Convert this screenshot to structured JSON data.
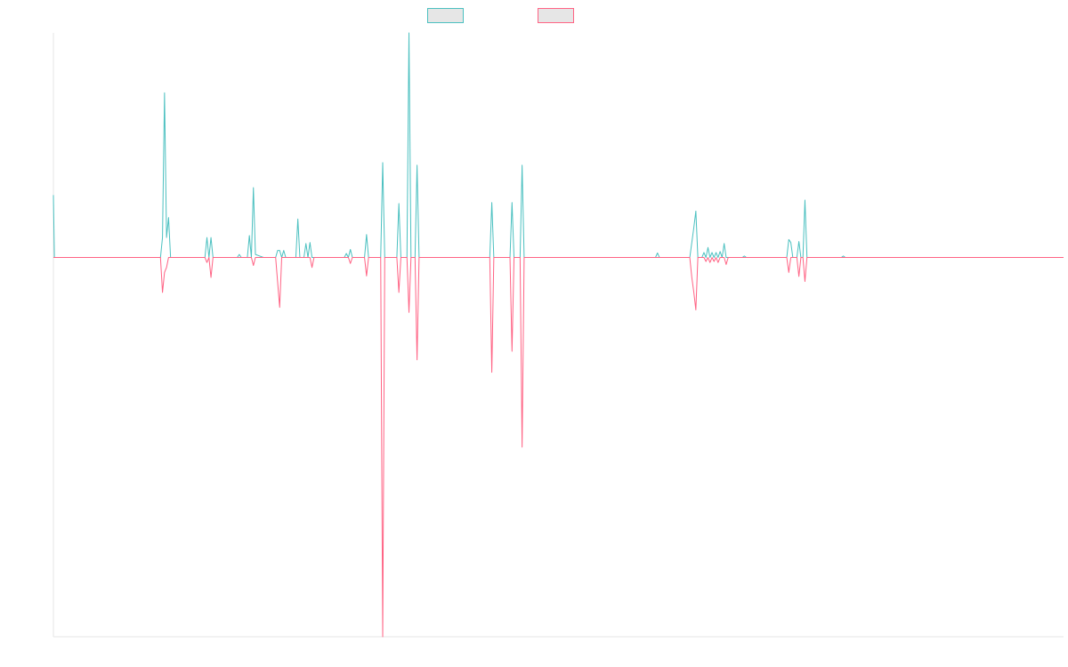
{
  "chart_data": {
    "type": "line",
    "title": "",
    "xlabel": "",
    "ylabel": "",
    "x_range": [
      0,
      1000
    ],
    "ylim": [
      -76,
      45
    ],
    "grid": false,
    "legend_position": "top",
    "series": [
      {
        "name": "",
        "color": "#4bc0c0",
        "fill_color": "#e6e6e6",
        "values": [
          [
            0,
            12.5
          ],
          [
            1,
            0
          ],
          [
            88,
            0
          ],
          [
            92,
            0
          ],
          [
            106,
            0
          ],
          [
            108,
            4
          ],
          [
            110,
            33
          ],
          [
            112,
            4
          ],
          [
            114,
            8
          ],
          [
            116,
            0
          ],
          [
            128,
            0
          ],
          [
            132,
            0
          ],
          [
            134,
            0
          ],
          [
            150,
            0
          ],
          [
            152,
            4
          ],
          [
            154,
            0
          ],
          [
            156,
            4
          ],
          [
            158,
            0
          ],
          [
            182,
            0
          ],
          [
            184,
            0.6
          ],
          [
            186,
            0
          ],
          [
            192,
            0
          ],
          [
            194,
            4.4
          ],
          [
            196,
            0
          ],
          [
            198,
            14
          ],
          [
            200,
            0.6
          ],
          [
            204,
            0.3
          ],
          [
            208,
            0
          ],
          [
            220,
            0
          ],
          [
            222,
            1.4
          ],
          [
            224,
            1.4
          ],
          [
            226,
            0
          ],
          [
            228,
            1.4
          ],
          [
            230,
            0
          ],
          [
            240,
            0
          ],
          [
            242,
            7.7
          ],
          [
            244,
            0
          ],
          [
            248,
            0
          ],
          [
            250,
            2.8
          ],
          [
            252,
            0
          ],
          [
            254,
            3
          ],
          [
            256,
            0
          ],
          [
            288,
            0
          ],
          [
            290,
            0.8
          ],
          [
            292,
            0
          ],
          [
            294,
            1.6
          ],
          [
            296,
            0
          ],
          [
            308,
            0
          ],
          [
            310,
            4.6
          ],
          [
            312,
            0
          ],
          [
            316,
            0
          ],
          [
            318,
            0
          ],
          [
            324,
            0
          ],
          [
            326,
            19
          ],
          [
            328,
            0
          ],
          [
            340,
            0
          ],
          [
            342,
            10.8
          ],
          [
            344,
            0
          ],
          [
            350,
            0
          ],
          [
            352,
            45
          ],
          [
            354,
            0
          ],
          [
            358,
            0
          ],
          [
            360,
            18.5
          ],
          [
            362,
            0
          ],
          [
            372,
            0
          ],
          [
            374,
            0
          ],
          [
            432,
            0
          ],
          [
            434,
            11
          ],
          [
            436,
            0
          ],
          [
            452,
            0
          ],
          [
            454,
            11
          ],
          [
            456,
            0
          ],
          [
            462,
            0
          ],
          [
            464,
            18.5
          ],
          [
            466,
            0
          ],
          [
            505,
            0
          ],
          [
            550,
            0
          ],
          [
            596,
            0
          ],
          [
            598,
            0.9
          ],
          [
            600,
            0
          ],
          [
            630,
            0
          ],
          [
            632,
            3
          ],
          [
            634,
            6
          ],
          [
            636,
            9.3
          ],
          [
            638,
            0
          ],
          [
            642,
            0
          ],
          [
            644,
            1
          ],
          [
            646,
            0
          ],
          [
            648,
            2
          ],
          [
            650,
            0
          ],
          [
            652,
            1
          ],
          [
            654,
            0
          ],
          [
            656,
            1
          ],
          [
            658,
            0
          ],
          [
            660,
            1.2
          ],
          [
            662,
            0
          ],
          [
            664,
            2.8
          ],
          [
            666,
            0
          ],
          [
            682,
            0
          ],
          [
            684,
            0.3
          ],
          [
            686,
            0
          ],
          [
            726,
            0
          ],
          [
            728,
            3.6
          ],
          [
            730,
            3
          ],
          [
            732,
            0
          ],
          [
            736,
            0
          ],
          [
            738,
            3.2
          ],
          [
            740,
            0
          ],
          [
            742,
            0
          ],
          [
            744,
            11.5
          ],
          [
            746,
            0
          ],
          [
            780,
            0
          ],
          [
            782,
            0.3
          ],
          [
            784,
            0
          ],
          [
            1000,
            0
          ]
        ]
      },
      {
        "name": "",
        "color": "#ff6384",
        "fill_color": "#e6e6e6",
        "values": [
          [
            0,
            0
          ],
          [
            88,
            0
          ],
          [
            92,
            0
          ],
          [
            106,
            0
          ],
          [
            108,
            -7
          ],
          [
            110,
            -3
          ],
          [
            112,
            -2
          ],
          [
            114,
            0
          ],
          [
            128,
            0
          ],
          [
            132,
            0
          ],
          [
            134,
            0
          ],
          [
            150,
            0
          ],
          [
            152,
            -1
          ],
          [
            154,
            0
          ],
          [
            156,
            -4
          ],
          [
            158,
            0
          ],
          [
            182,
            0
          ],
          [
            184,
            0
          ],
          [
            186,
            0
          ],
          [
            196,
            0
          ],
          [
            198,
            -1.6
          ],
          [
            200,
            0
          ],
          [
            220,
            0
          ],
          [
            222,
            -5
          ],
          [
            224,
            -10
          ],
          [
            226,
            0
          ],
          [
            228,
            0
          ],
          [
            230,
            0
          ],
          [
            254,
            0
          ],
          [
            256,
            -2
          ],
          [
            258,
            0
          ],
          [
            288,
            0
          ],
          [
            292,
            0
          ],
          [
            294,
            -1.2
          ],
          [
            296,
            0
          ],
          [
            308,
            0
          ],
          [
            310,
            -3.7
          ],
          [
            312,
            0
          ],
          [
            316,
            0
          ],
          [
            318,
            0
          ],
          [
            324,
            0
          ],
          [
            326,
            -76
          ],
          [
            328,
            0
          ],
          [
            340,
            0
          ],
          [
            342,
            -7
          ],
          [
            344,
            0
          ],
          [
            350,
            0
          ],
          [
            352,
            -11
          ],
          [
            354,
            0
          ],
          [
            358,
            0
          ],
          [
            360,
            -20.5
          ],
          [
            362,
            0
          ],
          [
            372,
            0
          ],
          [
            374,
            0
          ],
          [
            432,
            0
          ],
          [
            434,
            -23
          ],
          [
            436,
            0
          ],
          [
            452,
            0
          ],
          [
            454,
            -18.8
          ],
          [
            456,
            0
          ],
          [
            462,
            0
          ],
          [
            464,
            -38
          ],
          [
            466,
            0
          ],
          [
            505,
            0
          ],
          [
            550,
            0
          ],
          [
            596,
            0
          ],
          [
            600,
            0
          ],
          [
            630,
            0
          ],
          [
            632,
            -4
          ],
          [
            634,
            -7
          ],
          [
            636,
            -10.5
          ],
          [
            638,
            0
          ],
          [
            642,
            0
          ],
          [
            644,
            0
          ],
          [
            646,
            -0.8
          ],
          [
            648,
            0
          ],
          [
            650,
            -1
          ],
          [
            652,
            0
          ],
          [
            654,
            -0.8
          ],
          [
            656,
            0
          ],
          [
            658,
            -1
          ],
          [
            660,
            0
          ],
          [
            664,
            0
          ],
          [
            666,
            -1.4
          ],
          [
            668,
            0
          ],
          [
            682,
            0
          ],
          [
            686,
            0
          ],
          [
            726,
            0
          ],
          [
            728,
            -3
          ],
          [
            730,
            0
          ],
          [
            736,
            0
          ],
          [
            738,
            -3.8
          ],
          [
            740,
            0
          ],
          [
            742,
            0
          ],
          [
            744,
            -4.8
          ],
          [
            746,
            0
          ],
          [
            1000,
            0
          ]
        ]
      }
    ]
  }
}
